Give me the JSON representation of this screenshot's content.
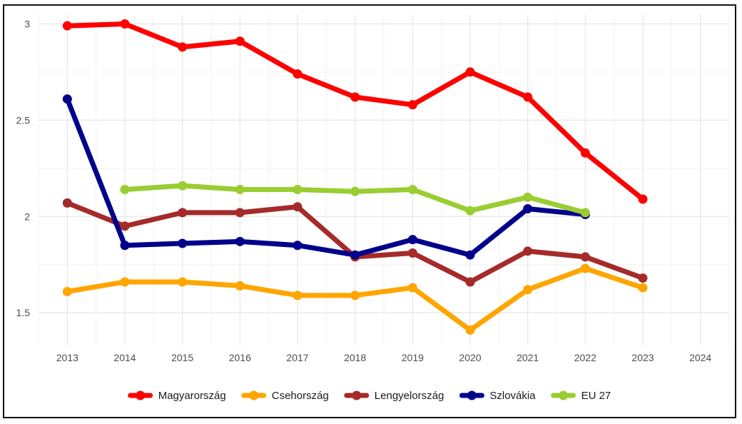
{
  "chart_data": {
    "type": "line",
    "title": "",
    "xlabel": "",
    "ylabel": "",
    "x": [
      2013,
      2014,
      2015,
      2016,
      2017,
      2018,
      2019,
      2020,
      2021,
      2022,
      2023
    ],
    "xlim": [
      2012.5,
      2024.5
    ],
    "xticks": [
      "2013",
      "2014",
      "2015",
      "2016",
      "2017",
      "2018",
      "2019",
      "2020",
      "2021",
      "2022",
      "2023",
      "2024"
    ],
    "ylim": [
      1.33,
      3.05
    ],
    "yticks": [
      {
        "value": 1.5,
        "label": "1.5"
      },
      {
        "value": 2.0,
        "label": "2"
      },
      {
        "value": 2.5,
        "label": "2.5"
      },
      {
        "value": 3.0,
        "label": "3"
      }
    ],
    "grid": true,
    "legend_position": "bottom",
    "series": [
      {
        "name": "Magyarország",
        "color": "#ff0000",
        "values": [
          2.99,
          3.0,
          2.88,
          2.91,
          2.74,
          2.62,
          2.58,
          2.75,
          2.62,
          2.33,
          2.09
        ]
      },
      {
        "name": "Csehország",
        "color": "#ffa500",
        "values": [
          1.61,
          1.66,
          1.66,
          1.64,
          1.59,
          1.59,
          1.63,
          1.41,
          1.62,
          1.73,
          1.63
        ]
      },
      {
        "name": "Lengyelország",
        "color": "#a52a2a",
        "values": [
          2.07,
          1.95,
          2.02,
          2.02,
          2.05,
          1.79,
          1.81,
          1.66,
          1.82,
          1.79,
          1.68
        ]
      },
      {
        "name": "Szlovákia",
        "color": "#00008b",
        "values": [
          2.61,
          1.85,
          1.86,
          1.87,
          1.85,
          1.8,
          1.88,
          1.8,
          2.04,
          2.01,
          null
        ]
      },
      {
        "name": "EU 27",
        "color": "#9acd32",
        "values": [
          null,
          2.14,
          2.16,
          2.14,
          2.14,
          2.13,
          2.14,
          2.03,
          2.1,
          2.02,
          null
        ]
      }
    ]
  }
}
